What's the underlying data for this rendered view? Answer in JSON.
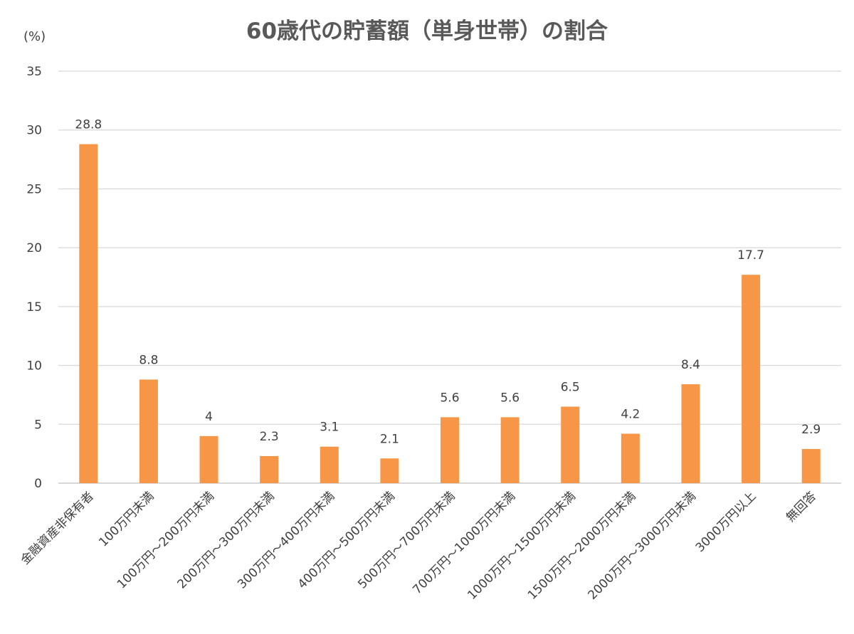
{
  "chart_data": {
    "type": "bar",
    "title": "60歳代の貯蓄額（単身世帯）の割合",
    "ylabel": "(%)",
    "xlabel": "",
    "ylim": [
      0,
      35
    ],
    "yticks": [
      0,
      5,
      10,
      15,
      20,
      25,
      30,
      35
    ],
    "grid": true,
    "legend": "none",
    "bar_color": "#F79646",
    "categories": [
      "金融資産非保有者",
      "100万円未満",
      "100万円～200万円未満",
      "200万円～300万円未満",
      "300万円～400万円未満",
      "400万円～500万円未満",
      "500万円～700万円未満",
      "700万円～1000万円未満",
      "1000万円～1500万円未満",
      "1500万円～2000万円未満",
      "2000万円～3000万円未満",
      "3000万円以上",
      "無回答"
    ],
    "values": [
      28.8,
      8.8,
      4,
      2.3,
      3.1,
      2.1,
      5.6,
      5.6,
      6.5,
      4.2,
      8.4,
      17.7,
      2.9
    ],
    "data_labels": [
      "28.8",
      "8.8",
      "4",
      "2.3",
      "3.1",
      "2.1",
      "5.6",
      "5.6",
      "6.5",
      "4.2",
      "8.4",
      "17.7",
      "2.9"
    ]
  }
}
